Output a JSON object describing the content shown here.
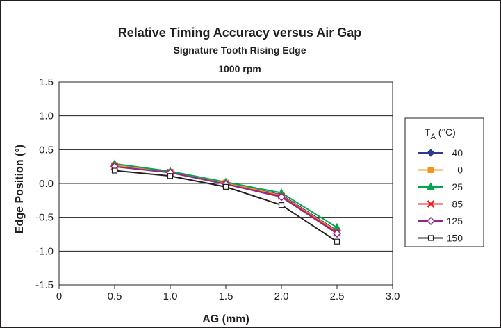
{
  "chart_data": {
    "type": "line",
    "title": "Relative Timing Accuracy versus Air Gap",
    "subtitle": "Signature Tooth Rising Edge",
    "subtitle2": "1000 rpm",
    "xlabel": "AG (mm)",
    "ylabel": "Edge Position (°)",
    "xlim": [
      0,
      3.0
    ],
    "ylim": [
      -1.5,
      1.5
    ],
    "x_ticks": [
      "0",
      "0.5",
      "1.0",
      "1.5",
      "2.0",
      "2.5",
      "3.0"
    ],
    "y_ticks": [
      "1.5",
      "1.0",
      "0.5",
      "0.0",
      "-0.5",
      "-1.0",
      "-1.5"
    ],
    "grid": "horizontal",
    "legend": {
      "title_main": "T",
      "title_sub": "A",
      "title_unit": " (°C)",
      "position": "right"
    },
    "x": [
      0.5,
      1.0,
      1.5,
      2.0,
      2.5
    ],
    "series": [
      {
        "name": "–40",
        "values": [
          0.26,
          0.17,
          0.01,
          -0.17,
          -0.7
        ],
        "color": "#2b3990",
        "marker": "diamond-filled"
      },
      {
        "name": "0",
        "values": [
          0.27,
          0.17,
          0.01,
          -0.18,
          -0.71
        ],
        "color": "#f7941d",
        "marker": "square-filled"
      },
      {
        "name": "25",
        "values": [
          0.29,
          0.18,
          0.02,
          -0.14,
          -0.65
        ],
        "color": "#00a651",
        "marker": "triangle-filled"
      },
      {
        "name": "85",
        "values": [
          0.25,
          0.16,
          -0.01,
          -0.19,
          -0.73
        ],
        "color": "#ed1c24",
        "marker": "x"
      },
      {
        "name": "125",
        "values": [
          0.25,
          0.16,
          -0.01,
          -0.2,
          -0.74
        ],
        "color": "#92278f",
        "marker": "diamond-open"
      },
      {
        "name": "150",
        "values": [
          0.19,
          0.11,
          -0.05,
          -0.32,
          -0.86
        ],
        "color": "#231f20",
        "marker": "square-open"
      }
    ]
  }
}
